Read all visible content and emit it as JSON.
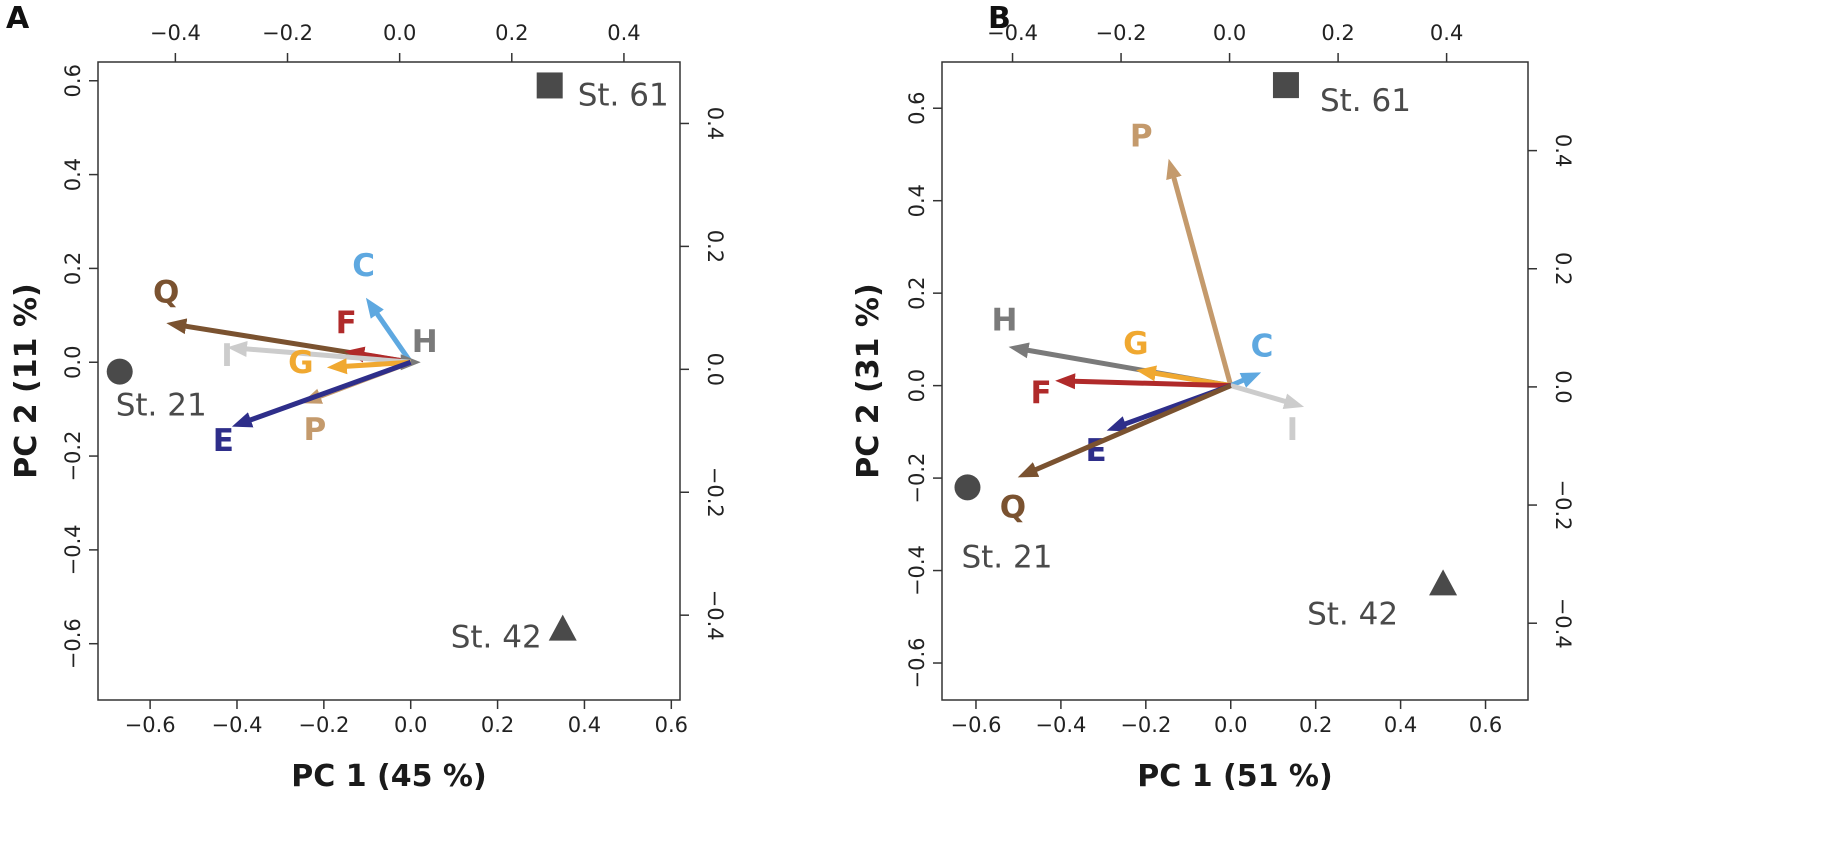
{
  "figure": {
    "panel_labels": [
      "A",
      "B"
    ]
  },
  "chart_data": [
    {
      "panel": "A",
      "type": "scatter",
      "subtype": "pca-biplot",
      "xlabel": "PC 1 (45 %)",
      "ylabel": "PC 2 (11 %)",
      "xlim": [
        -0.72,
        0.62
      ],
      "ylim": [
        -0.72,
        0.64
      ],
      "x_ticks": [
        -0.6,
        -0.4,
        -0.2,
        0.0,
        0.2,
        0.4,
        0.6
      ],
      "y_ticks": [
        -0.6,
        -0.4,
        -0.2,
        0.0,
        0.2,
        0.4,
        0.6
      ],
      "x_tick_labels": [
        "−0.6",
        "−0.4",
        "−0.2",
        "0.0",
        "0.2",
        "0.4",
        "0.6"
      ],
      "y_tick_labels": [
        "−0.6",
        "−0.4",
        "−0.2",
        "0.0",
        "0.2",
        "0.4",
        "0.6"
      ],
      "top_lim": [
        -0.538,
        0.5
      ],
      "right_lim": [
        -0.538,
        0.5
      ],
      "top_ticks": [
        -0.4,
        -0.2,
        0.0,
        0.2,
        0.4
      ],
      "right_ticks": [
        -0.4,
        -0.2,
        0.0,
        0.2,
        0.4
      ],
      "top_tick_labels": [
        "−0.4",
        "−0.2",
        "0.0",
        "0.2",
        "0.4"
      ],
      "right_tick_labels": [
        "−0.4",
        "−0.2",
        "0.0",
        "0.2",
        "0.4"
      ],
      "sites": [
        {
          "label": "St. 61",
          "shape": "square",
          "x": 0.32,
          "y": 0.59
        },
        {
          "label": "St. 21",
          "shape": "circle",
          "x": -0.67,
          "y": -0.02
        },
        {
          "label": "St. 42",
          "shape": "triangle",
          "x": 0.35,
          "y": -0.57
        }
      ],
      "vectors": [
        {
          "label": "Q",
          "color": "#7a5230",
          "x": -0.54,
          "y": 0.08
        },
        {
          "label": "F",
          "color": "#b02a2a",
          "x": -0.13,
          "y": 0.02
        },
        {
          "label": "C",
          "color": "#5ea8e0",
          "x": -0.09,
          "y": 0.12
        },
        {
          "label": "H",
          "color": "#7a7a7a",
          "x": 0.0,
          "y": 0.0
        },
        {
          "label": "I",
          "color": "#cccccc",
          "x": -0.4,
          "y": 0.03
        },
        {
          "label": "G",
          "color": "#f0a830",
          "x": -0.17,
          "y": -0.01
        },
        {
          "label": "P",
          "color": "#c49a6c",
          "x": -0.23,
          "y": -0.08
        },
        {
          "label": "E",
          "color": "#2e2e8a",
          "x": -0.39,
          "y": -0.13
        }
      ]
    },
    {
      "panel": "B",
      "type": "scatter",
      "subtype": "pca-biplot",
      "xlabel": "PC 1 (51 %)",
      "ylabel": "PC 2 (31 %)",
      "xlim": [
        -0.68,
        0.7
      ],
      "ylim": [
        -0.68,
        0.7
      ],
      "x_ticks": [
        -0.6,
        -0.4,
        -0.2,
        0.0,
        0.2,
        0.4,
        0.6
      ],
      "y_ticks": [
        -0.6,
        -0.4,
        -0.2,
        0.0,
        0.2,
        0.4,
        0.6
      ],
      "x_tick_labels": [
        "−0.6",
        "−0.4",
        "−0.2",
        "0.0",
        "0.2",
        "0.4",
        "0.6"
      ],
      "y_tick_labels": [
        "−0.6",
        "−0.4",
        "−0.2",
        "0.0",
        "0.2",
        "0.4",
        "0.6"
      ],
      "top_lim": [
        -0.53,
        0.55
      ],
      "right_lim": [
        -0.53,
        0.55
      ],
      "top_ticks": [
        -0.4,
        -0.2,
        0.0,
        0.2,
        0.4
      ],
      "right_ticks": [
        -0.4,
        -0.2,
        0.0,
        0.2,
        0.4
      ],
      "top_tick_labels": [
        "−0.4",
        "−0.2",
        "0.0",
        "0.2",
        "0.4"
      ],
      "right_tick_labels": [
        "−0.4",
        "−0.2",
        "0.0",
        "0.2",
        "0.4"
      ],
      "sites": [
        {
          "label": "St. 61",
          "shape": "square",
          "x": 0.13,
          "y": 0.65
        },
        {
          "label": "St. 21",
          "shape": "circle",
          "x": -0.62,
          "y": -0.22
        },
        {
          "label": "St. 42",
          "shape": "triangle",
          "x": 0.5,
          "y": -0.43
        }
      ],
      "vectors": [
        {
          "label": "P",
          "color": "#c49a6c",
          "x": -0.14,
          "y": 0.47
        },
        {
          "label": "H",
          "color": "#7a7a7a",
          "x": -0.5,
          "y": 0.08
        },
        {
          "label": "G",
          "color": "#f0a830",
          "x": -0.2,
          "y": 0.03
        },
        {
          "label": "C",
          "color": "#5ea8e0",
          "x": 0.05,
          "y": 0.02
        },
        {
          "label": "F",
          "color": "#b02a2a",
          "x": -0.39,
          "y": 0.01
        },
        {
          "label": "E",
          "color": "#2e2e8a",
          "x": -0.27,
          "y": -0.09
        },
        {
          "label": "I",
          "color": "#cccccc",
          "x": 0.15,
          "y": -0.04
        },
        {
          "label": "Q",
          "color": "#7a5230",
          "x": -0.48,
          "y": -0.19
        }
      ]
    }
  ]
}
